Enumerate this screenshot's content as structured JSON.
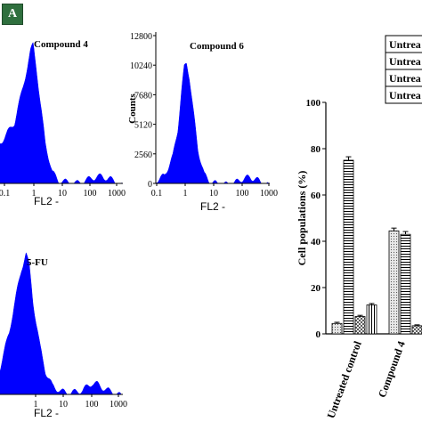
{
  "panel_label": "A",
  "chart_data": [
    {
      "type": "area",
      "title": "Compound 4",
      "xlabel": "FL2 -",
      "ylabel": "",
      "x_scale": "log",
      "xlim": [
        0.1,
        1000
      ],
      "x_ticks": [
        "0.1",
        "1",
        "10",
        "100",
        "1000"
      ],
      "y_ticks": [],
      "fill_color": "#0000ff",
      "x": [
        0.1,
        0.3,
        0.5,
        0.8,
        1.0,
        1.2,
        1.5,
        2,
        3,
        5,
        8,
        15,
        30,
        60,
        100,
        200,
        400,
        700,
        1000
      ],
      "y": [
        0.3,
        0.45,
        0.65,
        0.85,
        0.95,
        1.0,
        0.85,
        0.6,
        0.3,
        0.1,
        0.04,
        0.03,
        0.02,
        0.04,
        0.06,
        0.07,
        0.05,
        0.02,
        0
      ]
    },
    {
      "type": "area",
      "title": "Compound 6",
      "xlabel": "FL2 -",
      "ylabel": "Counts",
      "x_scale": "log",
      "xlim": [
        0.1,
        1000
      ],
      "ylim": [
        0,
        12800
      ],
      "x_ticks": [
        "0.1",
        "1",
        "10",
        "100",
        "1000"
      ],
      "y_ticks": [
        "0",
        "2560",
        "5120",
        "7680",
        "10240",
        "12800"
      ],
      "fill_color": "#0000ff",
      "x": [
        0.1,
        0.2,
        0.4,
        0.6,
        0.8,
        1.0,
        1.2,
        1.5,
        2,
        3,
        5,
        8,
        15,
        30,
        60,
        100,
        200,
        400,
        700,
        1000
      ],
      "y": [
        500,
        900,
        2600,
        5000,
        8200,
        10300,
        10700,
        9500,
        6800,
        3200,
        1000,
        400,
        200,
        150,
        300,
        600,
        800,
        500,
        200,
        0
      ]
    },
    {
      "type": "area",
      "title": "5-FU",
      "xlabel": "FL2 -",
      "ylabel": "",
      "x_scale": "log",
      "xlim": [
        0.1,
        1000
      ],
      "x_ticks": [
        "1",
        "10",
        "100",
        "1000"
      ],
      "y_ticks": [],
      "fill_color": "#0000ff",
      "x": [
        0.1,
        0.2,
        0.3,
        0.5,
        0.7,
        0.9,
        1.2,
        2,
        3,
        5,
        10,
        20,
        50,
        100,
        150,
        300,
        600,
        1000
      ],
      "y": [
        0.2,
        0.45,
        0.65,
        0.88,
        1.0,
        0.9,
        0.65,
        0.35,
        0.18,
        0.08,
        0.04,
        0.03,
        0.05,
        0.1,
        0.09,
        0.05,
        0.03,
        0
      ]
    },
    {
      "type": "bar",
      "title": "",
      "xlabel": "",
      "ylabel": "Cell populations (%)",
      "ylim": [
        0,
        100
      ],
      "y_ticks": [
        "0",
        "20",
        "40",
        "60",
        "80",
        "100"
      ],
      "categories": [
        "Untreated control",
        "Compound 4"
      ],
      "legend_entries": [
        "Untrea",
        "Untrea",
        "Untrea",
        "Untrea"
      ],
      "legend_position": "top-right",
      "series": [
        {
          "pattern": "dots",
          "values": [
            4.5,
            44.5
          ],
          "errors": [
            0.5,
            1.2
          ]
        },
        {
          "pattern": "hstripes",
          "values": [
            75,
            43
          ],
          "errors": [
            1.5,
            1.2
          ]
        },
        {
          "pattern": "crosshatch",
          "values": [
            7.5,
            3.5
          ],
          "errors": [
            0.5,
            0.4
          ]
        },
        {
          "pattern": "vstripes",
          "values": [
            12.5,
            null
          ],
          "errors": [
            0.6,
            null
          ]
        }
      ]
    }
  ]
}
